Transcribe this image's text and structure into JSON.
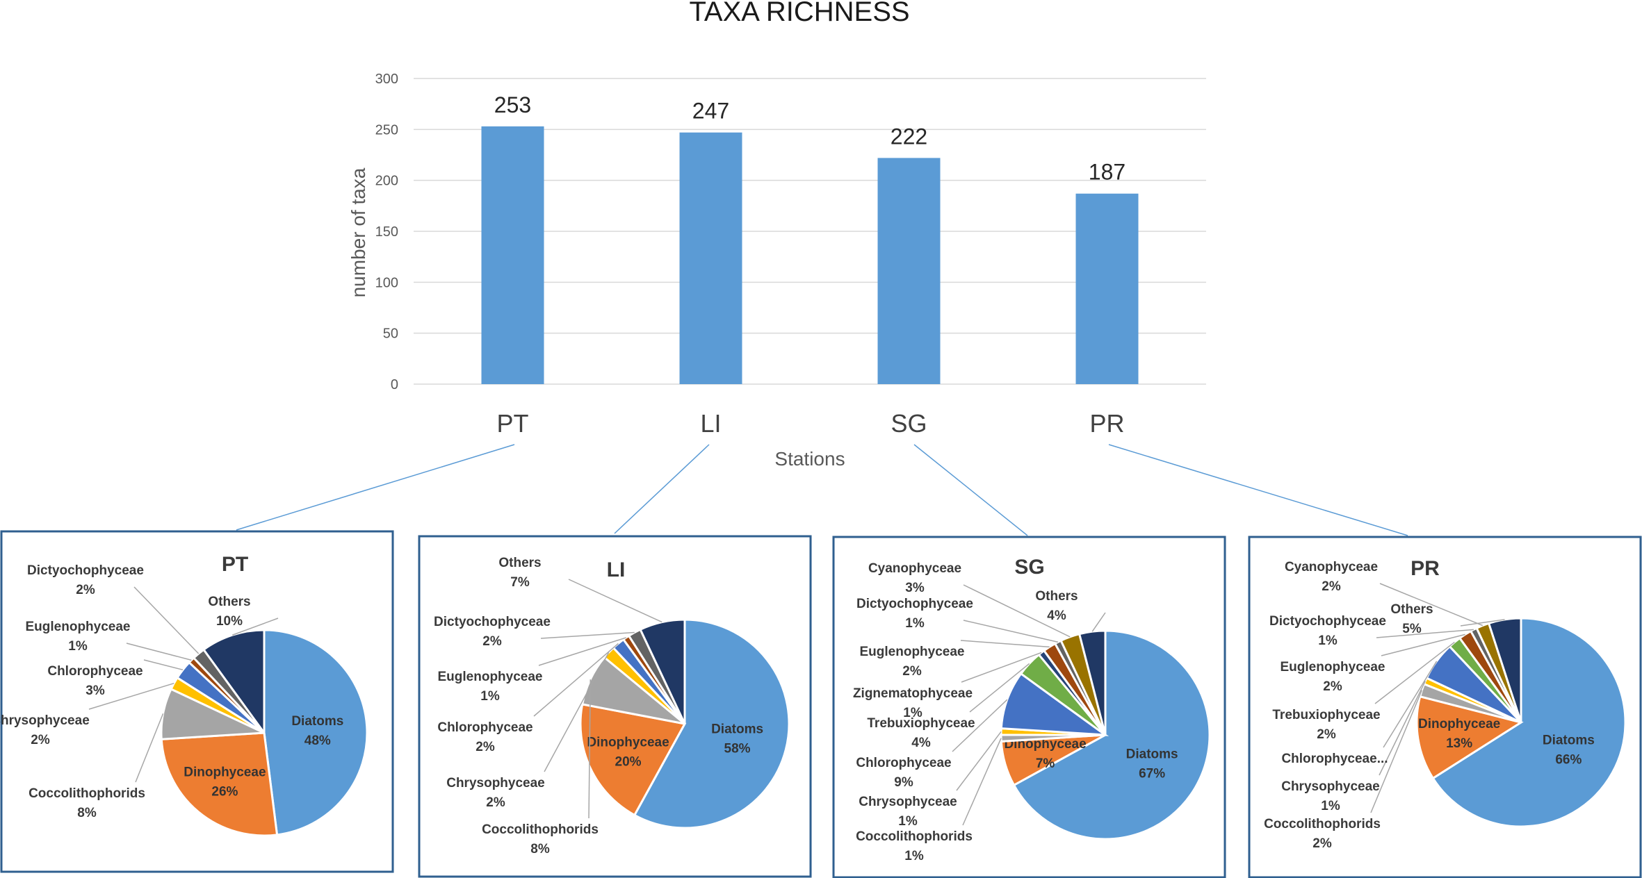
{
  "colors": {
    "bar": "#5B9BD5",
    "grid": "#D9D9D9",
    "frame": "#2F5F8F",
    "connector": "#5B9BD5",
    "leader": "#A6A6A6",
    "Diatoms": "#5B9BD5",
    "Dinophyceae": "#ED7D31",
    "Coccolithophorids": "#A5A5A5",
    "Chrysophyceae": "#FFC000",
    "Chlorophyceae": "#4472C4",
    "Trebuxiophyceae": "#70AD47",
    "Zignematophyceae": "#264478",
    "Euglenophyceae": "#9E480E",
    "Dictyochophyceae": "#636363",
    "Cyanophyceae": "#997300",
    "Others": "#203864"
  },
  "chart_data": [
    {
      "type": "bar",
      "title": "TAXA RICHNESS",
      "xlabel": "Stations",
      "ylabel": "number of taxa",
      "categories": [
        "PT",
        "LI",
        "SG",
        "PR"
      ],
      "values": [
        253,
        247,
        222,
        187
      ],
      "value_labels": [
        "253",
        "247",
        "222",
        "187"
      ],
      "ylim": [
        0,
        300
      ],
      "yticks": [
        "0",
        "50",
        "100",
        "150",
        "200",
        "250",
        "300"
      ],
      "grid": true
    },
    {
      "type": "pie",
      "title": "PT",
      "slices": [
        {
          "label": "Diatoms",
          "value": 48,
          "pct": "48%"
        },
        {
          "label": "Dinophyceae",
          "value": 26,
          "pct": "26%"
        },
        {
          "label": "Coccolithophorids",
          "value": 8,
          "pct": "8%"
        },
        {
          "label": "Chrysophyceae",
          "value": 2,
          "pct": "2%"
        },
        {
          "label": "Chlorophyceae",
          "value": 3,
          "pct": "3%"
        },
        {
          "label": "Euglenophyceae",
          "value": 1,
          "pct": "1%"
        },
        {
          "label": "Dictyochophyceae",
          "value": 2,
          "pct": "2%"
        },
        {
          "label": "Others",
          "value": 10,
          "pct": "10%"
        }
      ]
    },
    {
      "type": "pie",
      "title": "LI",
      "slices": [
        {
          "label": "Diatoms",
          "value": 58,
          "pct": "58%"
        },
        {
          "label": "Dinophyceae",
          "value": 20,
          "pct": "20%"
        },
        {
          "label": "Coccolithophorids",
          "value": 8,
          "pct": "8%"
        },
        {
          "label": "Chrysophyceae",
          "value": 2,
          "pct": "2%"
        },
        {
          "label": "Chlorophyceae",
          "value": 2,
          "pct": "2%"
        },
        {
          "label": "Euglenophyceae",
          "value": 1,
          "pct": "1%"
        },
        {
          "label": "Dictyochophyceae",
          "value": 2,
          "pct": "2%"
        },
        {
          "label": "Others",
          "value": 7,
          "pct": "7%"
        }
      ]
    },
    {
      "type": "pie",
      "title": "SG",
      "slices": [
        {
          "label": "Diatoms",
          "value": 67,
          "pct": "67%"
        },
        {
          "label": "Dinophyceae",
          "value": 7,
          "pct": "7%"
        },
        {
          "label": "Coccolithophorids",
          "value": 1,
          "pct": "1%"
        },
        {
          "label": "Chrysophyceae",
          "value": 1,
          "pct": "1%"
        },
        {
          "label": "Chlorophyceae",
          "value": 9,
          "pct": "9%"
        },
        {
          "label": "Trebuxiophyceae",
          "value": 4,
          "pct": "4%"
        },
        {
          "label": "Zignematophyceae",
          "value": 1,
          "pct": "1%"
        },
        {
          "label": "Euglenophyceae",
          "value": 2,
          "pct": "2%"
        },
        {
          "label": "Dictyochophyceae",
          "value": 1,
          "pct": "1%"
        },
        {
          "label": "Cyanophyceae",
          "value": 3,
          "pct": "3%"
        },
        {
          "label": "Others",
          "value": 4,
          "pct": "4%"
        }
      ]
    },
    {
      "type": "pie",
      "title": "PR",
      "slices": [
        {
          "label": "Diatoms",
          "value": 66,
          "pct": "66%"
        },
        {
          "label": "Dinophyceae",
          "value": 13,
          "pct": "13%"
        },
        {
          "label": "Coccolithophorids",
          "value": 2,
          "pct": "2%"
        },
        {
          "label": "Chrysophyceae",
          "value": 1,
          "pct": "1%"
        },
        {
          "label": "Chlorophyceae...",
          "value": 6,
          "pct": ""
        },
        {
          "label": "Trebuxiophyceae",
          "value": 2,
          "pct": "2%"
        },
        {
          "label": "Euglenophyceae",
          "value": 2,
          "pct": "2%"
        },
        {
          "label": "Dictyochophyceae",
          "value": 1,
          "pct": "1%"
        },
        {
          "label": "Cyanophyceae",
          "value": 2,
          "pct": "2%"
        },
        {
          "label": "Others",
          "value": 5,
          "pct": "5%"
        }
      ]
    }
  ]
}
